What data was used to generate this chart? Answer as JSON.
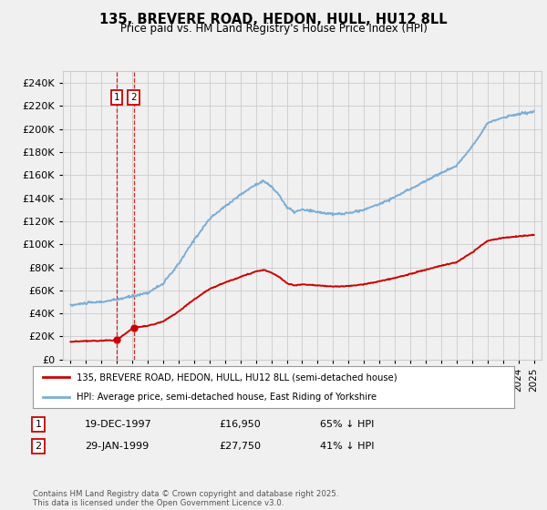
{
  "title": "135, BREVERE ROAD, HEDON, HULL, HU12 8LL",
  "subtitle": "Price paid vs. HM Land Registry's House Price Index (HPI)",
  "legend_line1": "135, BREVERE ROAD, HEDON, HULL, HU12 8LL (semi-detached house)",
  "legend_line2": "HPI: Average price, semi-detached house, East Riding of Yorkshire",
  "transaction1_date": "19-DEC-1997",
  "transaction1_price": "£16,950",
  "transaction1_hpi": "65% ↓ HPI",
  "transaction2_date": "29-JAN-1999",
  "transaction2_price": "£27,750",
  "transaction2_hpi": "41% ↓ HPI",
  "footer": "Contains HM Land Registry data © Crown copyright and database right 2025.\nThis data is licensed under the Open Government Licence v3.0.",
  "price_color": "#cc0000",
  "hpi_color": "#7aaed6",
  "background_color": "#f0f0f0",
  "grid_color": "#cccccc",
  "ylim": [
    0,
    250000
  ],
  "transaction1_x": 1997.97,
  "transaction1_y": 16950,
  "transaction2_x": 1999.08,
  "transaction2_y": 27750,
  "vline1_x": 1997.97,
  "vline2_x": 1999.08,
  "xmin": 1995,
  "xmax": 2025
}
